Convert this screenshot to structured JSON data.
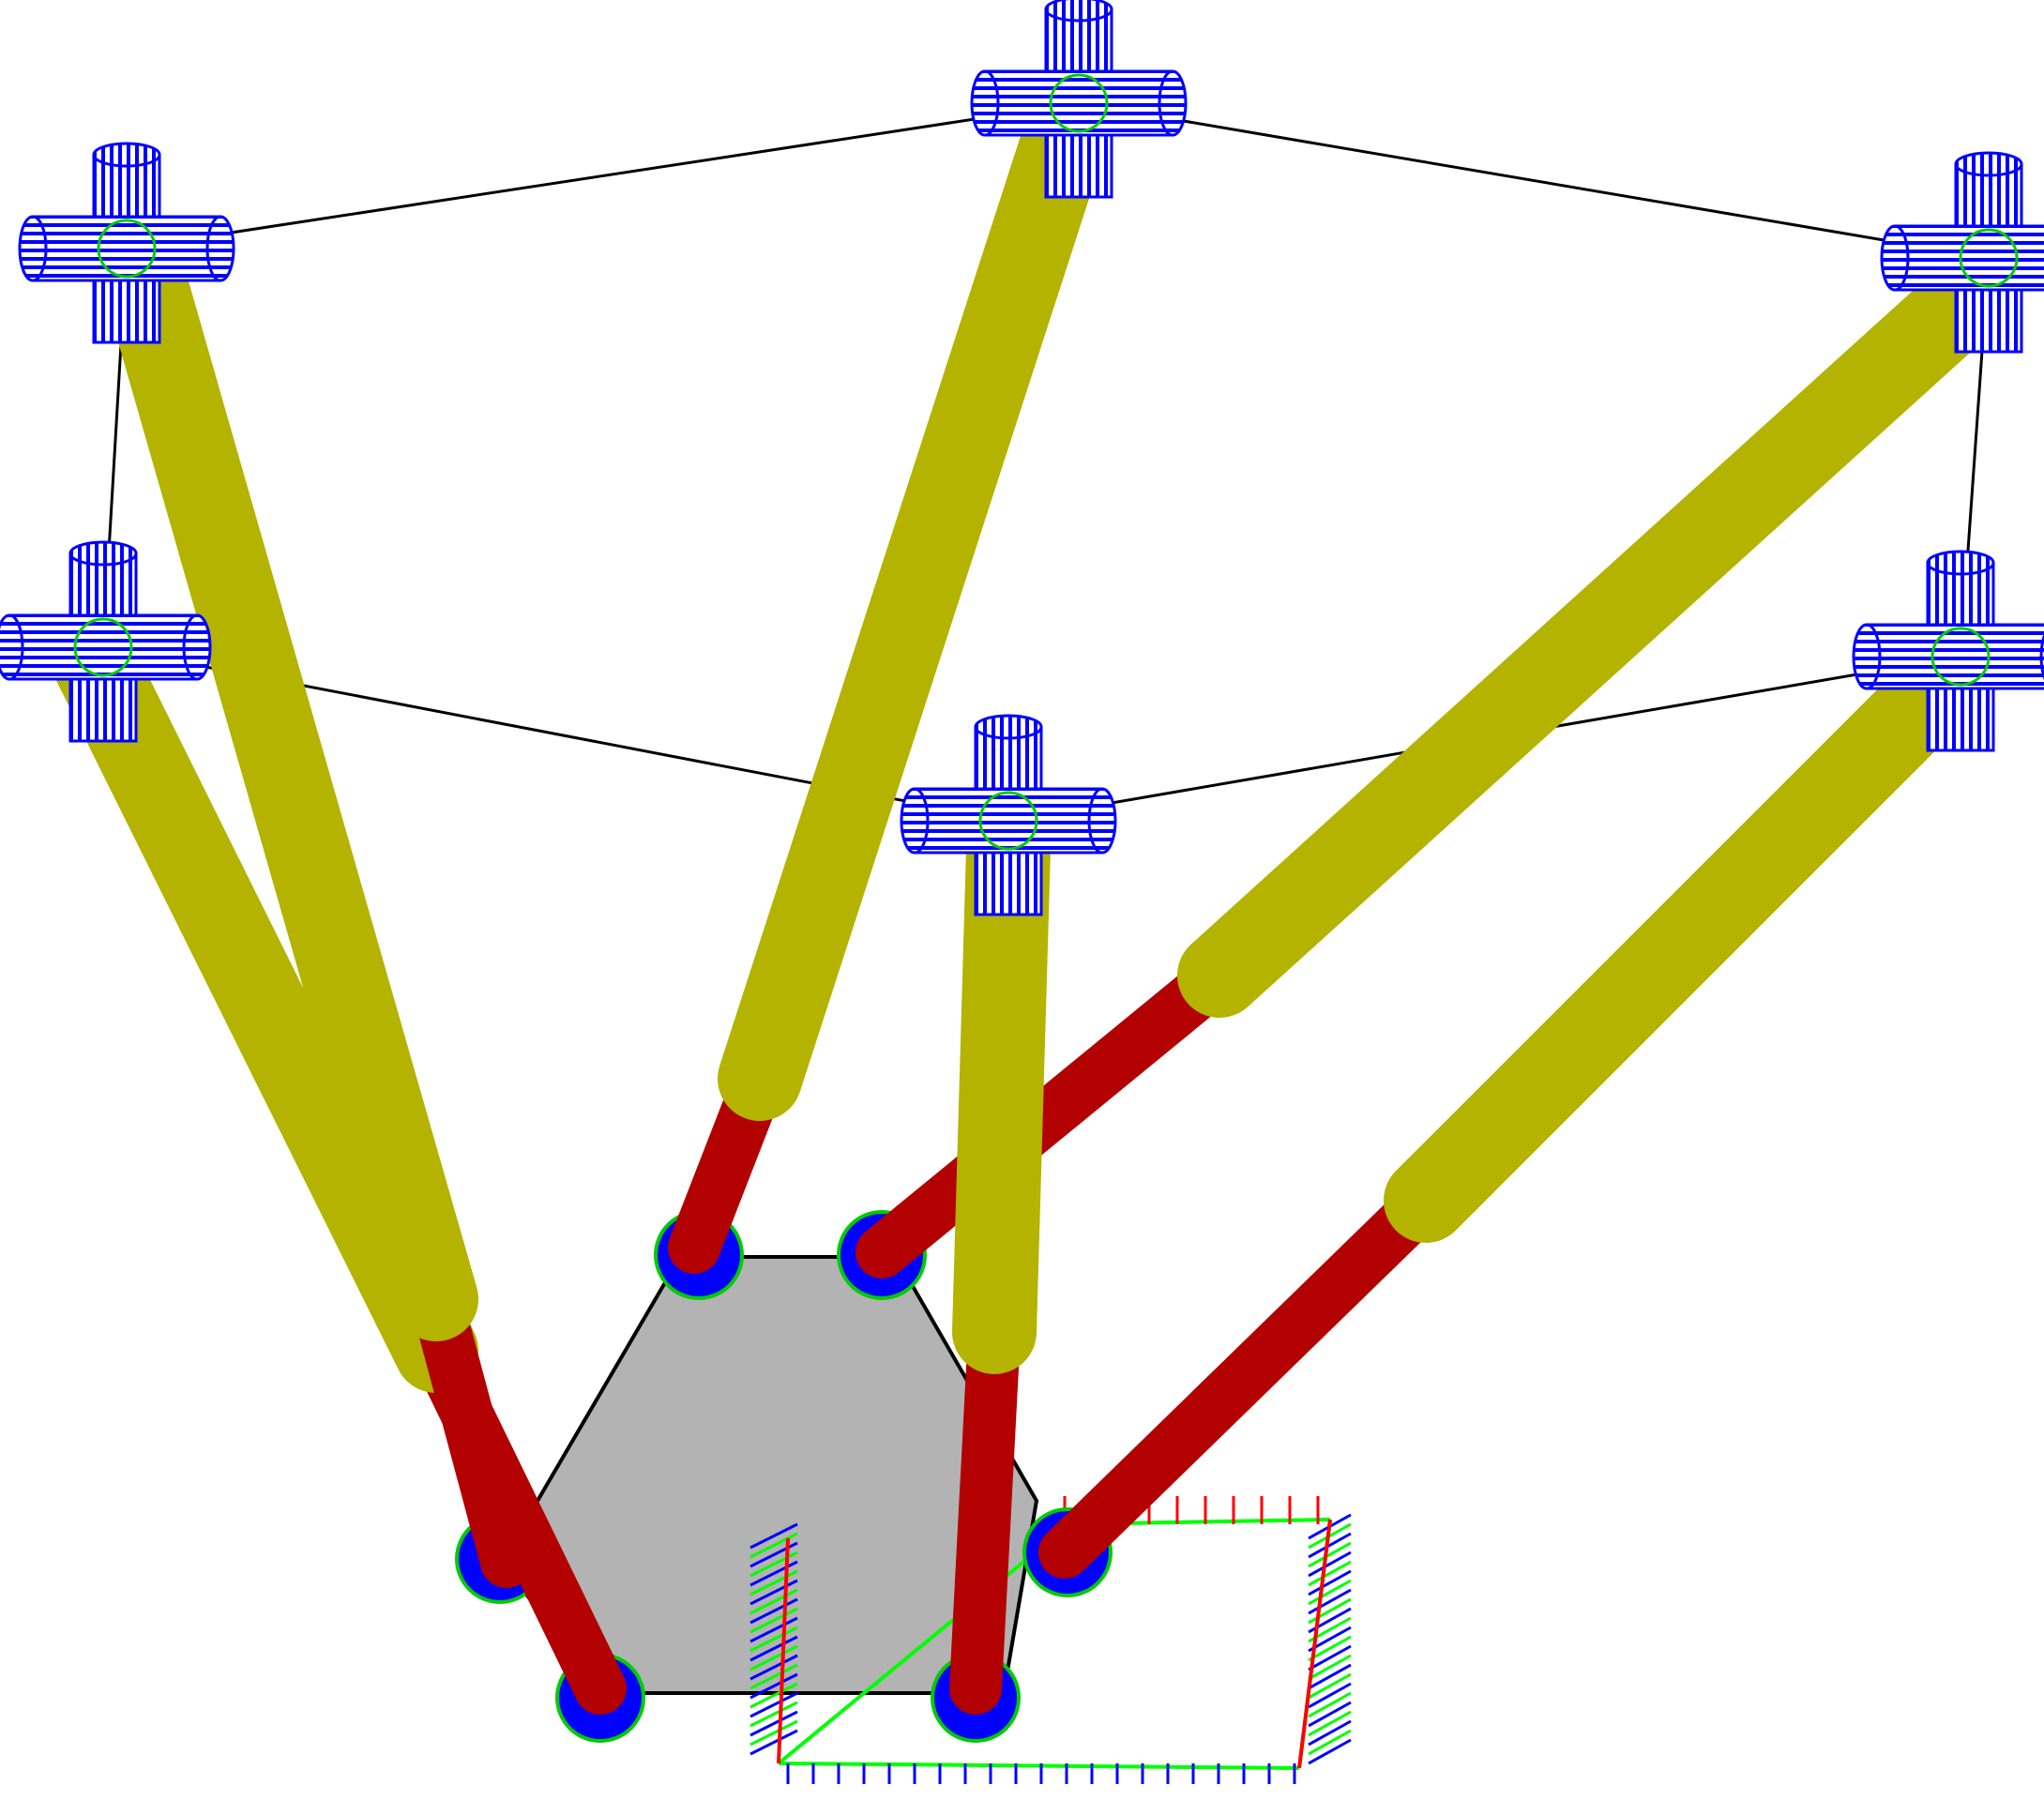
{
  "colors": {
    "background": "#ffffff",
    "frame_line": "#000000",
    "platform_fill": "#b3b3b3",
    "platform_stroke": "#000000",
    "joint_blue": "#0000ff",
    "joint_outline": "#00cc00",
    "leg_lower": "#b30000",
    "leg_upper": "#b3b300",
    "axis_x": "#ff0000",
    "axis_y": "#00ff00",
    "axis_z": "#0000ff"
  },
  "icons": {
    "base_joint": "universal-joint-icon",
    "platform_joint": "spherical-joint-icon"
  },
  "diagram": {
    "kind": "hexapod-parallel-manipulator",
    "legs": 6,
    "base_joints": 6,
    "platform_joints": 6
  }
}
